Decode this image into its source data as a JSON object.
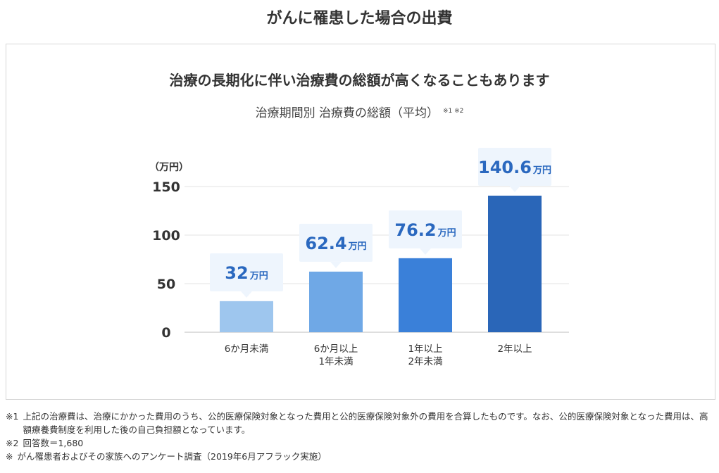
{
  "page": {
    "title": "がんに罹患した場合の出費"
  },
  "chart_data": {
    "type": "bar",
    "title": "治療の長期化に伴い治療費の総額が高くなることもあります",
    "subtitle": "治療期間別 治療費の総額（平均）",
    "subtitle_refs": "※1 ※2",
    "ylabel": "（万円）",
    "unit": "万円",
    "ylim": [
      0,
      150
    ],
    "yticks": [
      0,
      50,
      100,
      150
    ],
    "categories": [
      "6か月未満",
      "6か月以上\n1年未満",
      "1年以上\n2年未満",
      "2年以上"
    ],
    "values": [
      32,
      62.4,
      76.2,
      140.6
    ],
    "value_labels": [
      "32",
      "62.4",
      "76.2",
      "140.6"
    ],
    "colors": [
      "#9ec6ee",
      "#6fa8e6",
      "#3a80d9",
      "#2a66b8"
    ],
    "label_color": "#2a68bf",
    "callout_bg": "#eef5fd",
    "grid": true,
    "legend": "none"
  },
  "notes": [
    {
      "mark": "※1",
      "text": "上記の治療費は、治療にかかった費用のうち、公的医療保険対象となった費用と公的医療保険対象外の費用を合算したものです。なお、公的医療保険対象となった費用は、高額療養費制度を利用した後の自己負担額となっています。"
    },
    {
      "mark": "※2",
      "text": "回答数＝1,680"
    },
    {
      "mark": "※",
      "text": "がん罹患者およびその家族へのアンケート調査（2019年6月アフラック実施）"
    }
  ]
}
